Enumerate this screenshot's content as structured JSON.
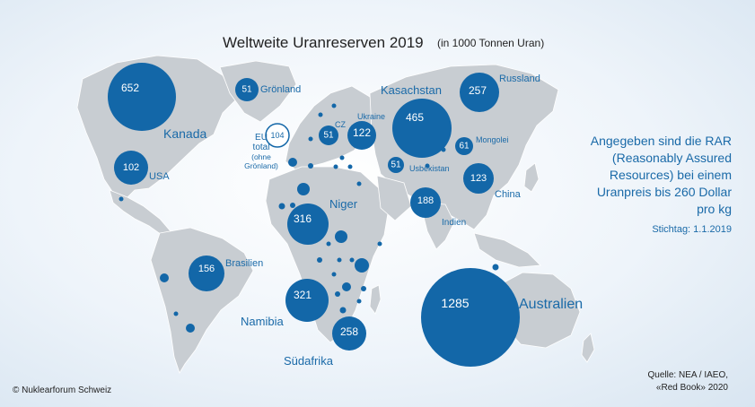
{
  "title": "Weltweite Uranreserven 2019",
  "title_unit": "(in 1000 Tonnen Uran)",
  "colors": {
    "land": "#c8cdd2",
    "bubble": "#1367a8",
    "label": "#1a6aa8"
  },
  "bubbles": [
    {
      "value": "652",
      "label": "Kanada"
    },
    {
      "value": "51",
      "label": "Grönland"
    },
    {
      "value": "102",
      "label": "USA"
    },
    {
      "value": "156",
      "label": "Brasilien"
    },
    {
      "value": "316",
      "label": "Niger"
    },
    {
      "value": "321",
      "label": "Namibia"
    },
    {
      "value": "258",
      "label": "Südafrika"
    },
    {
      "value": "51",
      "label": "CZ"
    },
    {
      "value": "122",
      "label": "Ukraine"
    },
    {
      "value": "465",
      "label": "Kasachstan"
    },
    {
      "value": "257",
      "label": "Russland"
    },
    {
      "value": "61",
      "label": "Mongolei"
    },
    {
      "value": "51",
      "label": "Usbekistan"
    },
    {
      "value": "123",
      "label": "China"
    },
    {
      "value": "188",
      "label": "Indien"
    },
    {
      "value": "1285",
      "label": "Australien"
    }
  ],
  "eu": {
    "value": "104",
    "label_line1": "EU",
    "label_line2": "total",
    "label_line3": "(ohne",
    "label_line4": "Grönland)"
  },
  "note": "Angegeben sind die RAR (Reasonably Assured Resources) bei einem Uranpreis bis 260 Dollar pro kg",
  "date": "Stichtag: 1.1.2019",
  "source_line1": "Quelle: NEA / IAEO,",
  "source_line2": "«Red Book» 2020",
  "copyright": "© Nuklearforum Schweiz"
}
